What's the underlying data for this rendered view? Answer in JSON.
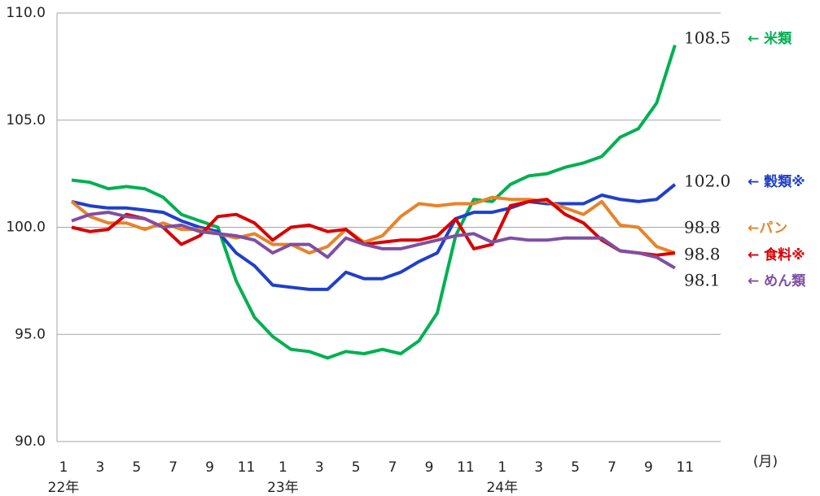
{
  "chart_data": {
    "type": "line",
    "x_unit": "(月)",
    "categories": [
      "1",
      null,
      "3",
      null,
      "5",
      null,
      "7",
      null,
      "9",
      null,
      "11",
      null,
      "1",
      null,
      "3",
      null,
      "5",
      null,
      "7",
      null,
      "9",
      null,
      "11",
      null,
      "1",
      null,
      "3",
      null,
      "5",
      null,
      "7",
      null,
      "9",
      null,
      "11"
    ],
    "years": [
      "22年",
      null,
      null,
      null,
      null,
      null,
      null,
      null,
      null,
      null,
      null,
      null,
      "23年",
      null,
      null,
      null,
      null,
      null,
      null,
      null,
      null,
      null,
      null,
      null,
      "24年",
      null,
      null,
      null,
      null,
      null,
      null,
      null,
      null,
      null,
      null
    ],
    "ylim": [
      90,
      110
    ],
    "yticks": [
      {
        "value": 90,
        "label": "90.0"
      },
      {
        "value": 95,
        "label": "95.0"
      },
      {
        "value": 100,
        "label": "100.0"
      },
      {
        "value": 105,
        "label": "105.0"
      },
      {
        "value": 110,
        "label": "110.0"
      }
    ],
    "grid": true,
    "series": [
      {
        "name": "← 米類",
        "color": "#00b050",
        "end_label": "108.5",
        "values": [
          102.2,
          102.1,
          101.8,
          101.9,
          101.8,
          101.4,
          100.6,
          100.3,
          100.0,
          97.5,
          95.8,
          94.9,
          94.3,
          94.2,
          93.9,
          94.2,
          94.1,
          94.3,
          94.1,
          94.7,
          96.0,
          99.6,
          101.3,
          101.2,
          102.0,
          102.4,
          102.5,
          102.8,
          103.0,
          103.3,
          104.2,
          104.6,
          105.8,
          108.5,
          null
        ]
      },
      {
        "name": "← 穀類※",
        "color": "#1f3fcc",
        "end_label": "102.0",
        "values": [
          101.2,
          101.0,
          100.9,
          100.9,
          100.8,
          100.7,
          100.3,
          100.0,
          99.8,
          98.8,
          98.2,
          97.3,
          97.2,
          97.1,
          97.1,
          97.9,
          97.6,
          97.6,
          97.9,
          98.4,
          98.8,
          100.4,
          100.7,
          100.7,
          100.9,
          101.2,
          101.1,
          101.1,
          101.1,
          101.5,
          101.3,
          101.2,
          101.3,
          102.0,
          null
        ]
      },
      {
        "name": "←パン",
        "color": "#e8832a",
        "end_label": "98.8",
        "values": [
          101.2,
          100.5,
          100.2,
          100.2,
          99.9,
          100.2,
          99.9,
          99.9,
          99.7,
          99.5,
          99.7,
          99.2,
          99.2,
          98.8,
          99.1,
          99.9,
          99.3,
          99.6,
          100.5,
          101.1,
          101.0,
          101.1,
          101.1,
          101.4,
          101.3,
          101.3,
          101.2,
          100.9,
          100.6,
          101.2,
          100.1,
          100.0,
          99.1,
          98.8,
          null
        ]
      },
      {
        "name": "← 食料※",
        "color": "#d90000",
        "end_label": "98.8",
        "values": [
          100.0,
          99.8,
          99.9,
          100.6,
          100.4,
          100.0,
          99.2,
          99.6,
          100.5,
          100.6,
          100.2,
          99.4,
          100.0,
          100.1,
          99.8,
          99.9,
          99.2,
          99.3,
          99.4,
          99.4,
          99.6,
          100.4,
          99.0,
          99.2,
          101.0,
          101.2,
          101.3,
          100.6,
          100.2,
          99.4,
          98.9,
          98.8,
          98.7,
          98.8,
          null
        ]
      },
      {
        "name": "← めん類",
        "color": "#7f4fa3",
        "end_label": "98.1",
        "values": [
          100.3,
          100.6,
          100.7,
          100.5,
          100.4,
          100.0,
          100.1,
          99.8,
          99.7,
          99.6,
          99.4,
          98.8,
          99.2,
          99.2,
          98.6,
          99.5,
          99.2,
          99.0,
          99.0,
          99.2,
          99.4,
          99.6,
          99.7,
          99.3,
          99.5,
          99.4,
          99.4,
          99.5,
          99.5,
          99.5,
          98.9,
          98.8,
          98.6,
          98.1,
          null
        ]
      }
    ]
  }
}
